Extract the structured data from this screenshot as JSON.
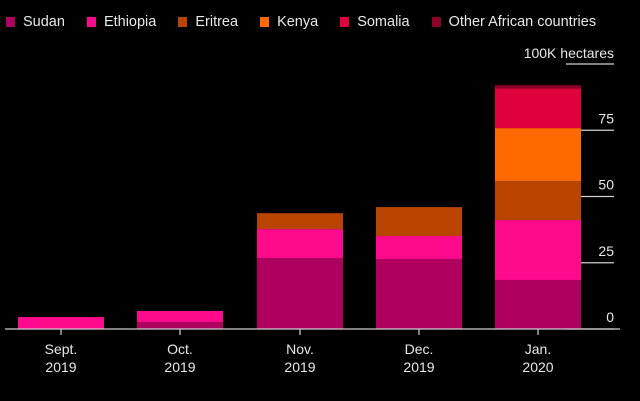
{
  "chart_data": {
    "type": "bar",
    "stacked": true,
    "title": "",
    "xlabel": "",
    "ylabel": "100K hectares",
    "ylim": [
      0,
      100
    ],
    "yticks": [
      0,
      25,
      50,
      75
    ],
    "categories": [
      {
        "line1": "Sept.",
        "line2": "2019"
      },
      {
        "line1": "Oct.",
        "line2": "2019"
      },
      {
        "line1": "Nov.",
        "line2": "2019"
      },
      {
        "line1": "Dec.",
        "line2": "2019"
      },
      {
        "line1": "Jan.",
        "line2": "2020"
      }
    ],
    "series": [
      {
        "name": "Sudan",
        "color": "#b0005f",
        "values": [
          0,
          2.6,
          26.8,
          26.4,
          18.5
        ]
      },
      {
        "name": "Ethiopia",
        "color": "#ff0a8c",
        "values": [
          4.5,
          4.2,
          10.9,
          8.7,
          22.6
        ]
      },
      {
        "name": "Eritrea",
        "color": "#b84400",
        "values": [
          0,
          0,
          6.0,
          10.9,
          14.7
        ]
      },
      {
        "name": "Kenya",
        "color": "#ff6a00",
        "values": [
          0,
          0,
          0,
          0,
          20.0
        ]
      },
      {
        "name": "Somalia",
        "color": "#e0003c",
        "values": [
          0,
          0,
          0,
          0,
          15.0
        ]
      },
      {
        "name": "Other African countries",
        "color": "#8a0028",
        "values": [
          0,
          0,
          0,
          0,
          1.2
        ]
      }
    ],
    "legend_position": "top-left",
    "grid": false
  }
}
